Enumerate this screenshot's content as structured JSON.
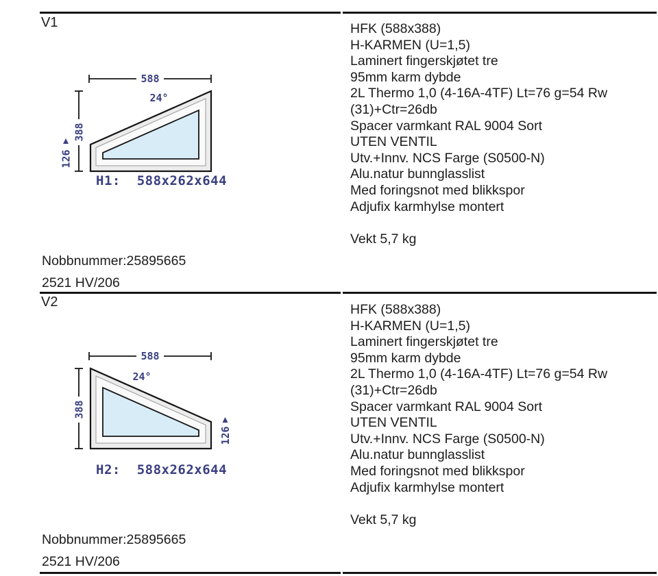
{
  "colors": {
    "dim_text": "#3a4080",
    "glass_fill": "#d8ecf8",
    "frame_fill": "#ececec",
    "band_fill": "#fafafa",
    "band_stroke": "#9b9b9b",
    "line_color": "#141414",
    "text_color": "#1c1c1c"
  },
  "sections": [
    {
      "label": "V1",
      "drawing": {
        "width_label": "588",
        "angle_label": "24°",
        "height_label": "388",
        "edge_label": "126",
        "caption": "H1:  588x262x644"
      },
      "specs": [
        "HFK (588x388)",
        "H-KARMEN (U=1,5)",
        "Laminert fingerskjøtet tre",
        "95mm karm dybde",
        "2L Thermo 1,0 (4-16A-4TF) Lt=76 g=54 Rw",
        "(31)+Ctr=26db",
        "Spacer varmkant RAL 9004 Sort",
        "UTEN VENTIL",
        "Utv.+Innv. NCS Farge (S0500-N)",
        "Alu.natur bunnglasslist",
        "Med foringsnot med blikkspor",
        "Adjufix karmhylse montert"
      ],
      "weight_label": "Vekt 5,7 kg",
      "nobb_label": "Nobbnummer:25895665",
      "product_code": "2521 HV/206"
    },
    {
      "label": "V2",
      "drawing": {
        "width_label": "588",
        "angle_label": "24°",
        "height_label": "388",
        "edge_label": "126",
        "caption": "H2:  588x262x644"
      },
      "specs": [
        "HFK (588x388)",
        "H-KARMEN (U=1,5)",
        "Laminert fingerskjøtet tre",
        "95mm karm dybde",
        "2L Thermo 1,0 (4-16A-4TF) Lt=76 g=54 Rw",
        "(31)+Ctr=26db",
        "Spacer varmkant RAL 9004 Sort",
        "UTEN VENTIL",
        "Utv.+Innv. NCS Farge (S0500-N)",
        "Alu.natur bunnglasslist",
        "Med foringsnot med blikkspor",
        "Adjufix karmhylse montert"
      ],
      "weight_label": "Vekt 5,7 kg",
      "nobb_label": "Nobbnummer:25895665",
      "product_code": "2521 HV/206"
    }
  ]
}
